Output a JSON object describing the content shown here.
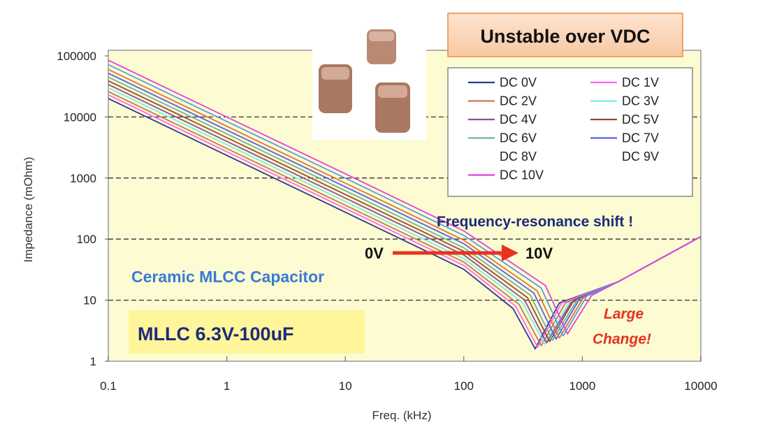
{
  "chart_data": {
    "type": "line",
    "title": "Unstable over VDC",
    "xlabel": "Freq. (kHz)",
    "ylabel": "Impedance (mOhm)",
    "xscale": "log",
    "yscale": "log",
    "xlim": [
      0.1,
      10000
    ],
    "ylim": [
      1,
      100000
    ],
    "x_ticks": [
      "0.1",
      "1",
      "10",
      "100",
      "1000",
      "10000"
    ],
    "x_tick_values": [
      0.1,
      1,
      10,
      100,
      1000,
      10000
    ],
    "y_ticks": [
      "1",
      "10",
      "100",
      "1000",
      "10000",
      "100000"
    ],
    "y_tick_values": [
      1,
      10,
      100,
      1000,
      10000,
      100000
    ],
    "grid": "dashed horizontal at each decade",
    "legend_placement": "top-right",
    "series": [
      {
        "name": "DC 0V",
        "color": "#2b3a8f",
        "points": [
          [
            0.1,
            20000
          ],
          [
            1,
            2350
          ],
          [
            10,
            276
          ],
          [
            100,
            32
          ],
          [
            260,
            7.3
          ],
          [
            400,
            1.6
          ],
          [
            640,
            9
          ],
          [
            2000,
            20
          ],
          [
            10000,
            110
          ]
        ]
      },
      {
        "name": "DC 1V",
        "color": "#ff66ff",
        "points": [
          [
            0.1,
            23000
          ],
          [
            1,
            2700
          ],
          [
            10,
            318
          ],
          [
            100,
            37
          ],
          [
            273,
            8.0
          ],
          [
            420,
            1.7
          ],
          [
            670,
            9
          ],
          [
            2000,
            20
          ],
          [
            10000,
            110
          ]
        ]
      },
      {
        "name": "DC 2V",
        "color": "#c87850",
        "points": [
          [
            0.1,
            26000
          ],
          [
            1,
            3050
          ],
          [
            10,
            359
          ],
          [
            100,
            42
          ],
          [
            293,
            8.5
          ],
          [
            450,
            1.8
          ],
          [
            720,
            9
          ],
          [
            2000,
            20
          ],
          [
            10000,
            110
          ]
        ]
      },
      {
        "name": "DC 3V",
        "color": "#70f0f0",
        "points": [
          [
            0.1,
            30000
          ],
          [
            1,
            3520
          ],
          [
            10,
            414
          ],
          [
            100,
            48
          ],
          [
            312,
            9.3
          ],
          [
            480,
            1.9
          ],
          [
            770,
            9
          ],
          [
            2000,
            20
          ],
          [
            10000,
            110
          ]
        ]
      },
      {
        "name": "DC 4V",
        "color": "#8a4f9a",
        "points": [
          [
            0.1,
            34000
          ],
          [
            1,
            3990
          ],
          [
            10,
            469
          ],
          [
            100,
            55
          ],
          [
            325,
            10.1
          ],
          [
            500,
            2.0
          ],
          [
            800,
            9
          ],
          [
            2000,
            20
          ],
          [
            10000,
            110
          ]
        ]
      },
      {
        "name": "DC 5V",
        "color": "#9a4535",
        "points": [
          [
            0.1,
            39000
          ],
          [
            1,
            4580
          ],
          [
            10,
            538
          ],
          [
            100,
            63
          ],
          [
            345,
            11
          ],
          [
            530,
            2.1
          ],
          [
            850,
            10
          ],
          [
            2000,
            20
          ],
          [
            10000,
            110
          ]
        ]
      },
      {
        "name": "DC 6V",
        "color": "#6fb0a8",
        "points": [
          [
            0.1,
            45000
          ],
          [
            1,
            5280
          ],
          [
            10,
            621
          ],
          [
            100,
            72
          ],
          [
            364,
            12.1
          ],
          [
            560,
            2.2
          ],
          [
            900,
            10
          ],
          [
            2000,
            20
          ],
          [
            10000,
            110
          ]
        ]
      },
      {
        "name": "DC 7V",
        "color": "#5060e8",
        "points": [
          [
            0.1,
            52000
          ],
          [
            1,
            6100
          ],
          [
            10,
            718
          ],
          [
            100,
            84
          ],
          [
            390,
            13.1
          ],
          [
            600,
            2.3
          ],
          [
            960,
            11
          ],
          [
            2000,
            20
          ],
          [
            10000,
            110
          ]
        ]
      },
      {
        "name": "DC 8V",
        "color": "#e07040",
        "points": [
          [
            0.1,
            60000
          ],
          [
            1,
            7040
          ],
          [
            10,
            828
          ],
          [
            100,
            96
          ],
          [
            416,
            14.2
          ],
          [
            640,
            2.4
          ],
          [
            1020,
            11
          ],
          [
            2000,
            20
          ],
          [
            10000,
            110
          ]
        ]
      },
      {
        "name": "DC 9V",
        "color": "#50a0e0",
        "points": [
          [
            0.1,
            72000
          ],
          [
            1,
            8450
          ],
          [
            10,
            994
          ],
          [
            100,
            115
          ],
          [
            449,
            15.9
          ],
          [
            690,
            2.6
          ],
          [
            1100,
            12
          ],
          [
            2000,
            20
          ],
          [
            10000,
            110
          ]
        ]
      },
      {
        "name": "DC 10V",
        "color": "#e040e0",
        "points": [
          [
            0.1,
            85000
          ],
          [
            1,
            9980
          ],
          [
            10,
            1173
          ],
          [
            100,
            136
          ],
          [
            488,
            17.4
          ],
          [
            750,
            2.8
          ],
          [
            1200,
            12
          ],
          [
            2000,
            20
          ],
          [
            10000,
            110
          ]
        ]
      }
    ],
    "legend_show_line": [
      true,
      true,
      true,
      true,
      true,
      true,
      true,
      true,
      false,
      false,
      true
    ],
    "annotations": {
      "resonance_shift": "Frequency-resonance shift !",
      "arrow_from": "0V",
      "arrow_to": "10V",
      "capacitor_type": "Ceramic MLCC Capacitor",
      "part": "MLLC 6.3V-100uF",
      "large_change_1": "Large",
      "large_change_2": "Change!"
    }
  },
  "colors": {
    "plot_bg": "#fdfbd2",
    "arrow": "#e8321e",
    "title_border": "#ec8a3c",
    "navy": "#1d2a7a",
    "blue_text": "#3a7bd5",
    "red_text": "#e8321e"
  }
}
